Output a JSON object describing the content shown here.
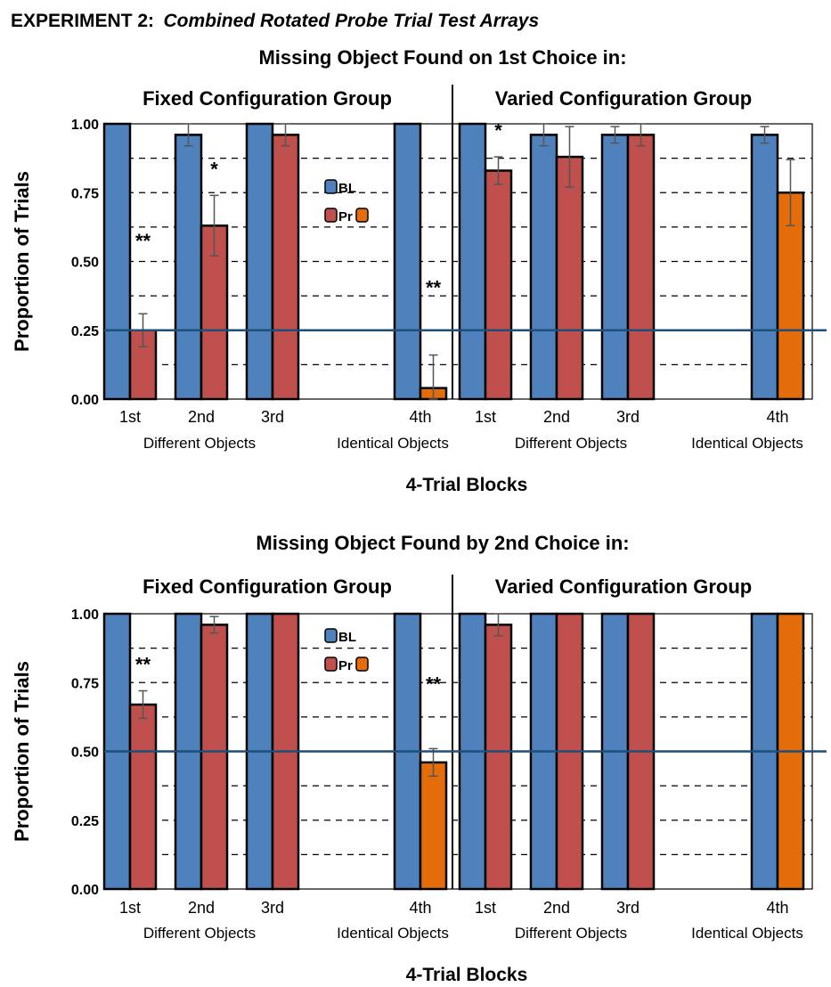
{
  "figure_title": {
    "prefix": "EXPERIMENT 2:",
    "italic": "Combined Rotated Probe Trial Test Arrays"
  },
  "colors": {
    "BL": "#4f81bd",
    "Pr": "#c0504d",
    "Pr_identical": "#e46c0a",
    "reference_line": "#1f4e79"
  },
  "chart_data": [
    {
      "type": "bar",
      "title": "Missing Object Found on 1st Choice in:",
      "ylabel": "Proportion of Trials",
      "xlabel": "4-Trial Blocks",
      "ylim": [
        0,
        1
      ],
      "yticks": [
        "0.00",
        "0.25",
        "0.50",
        "0.75",
        "1.00"
      ],
      "grid": "dashed horizontal every 0.125",
      "reference_line": 0.25,
      "legend": {
        "labels": [
          "BL",
          "Pr"
        ],
        "placement": "top-center of left panel"
      },
      "groups": [
        {
          "name": "Fixed Configuration Group",
          "categories": [
            "1st",
            "2nd",
            "3rd",
            "4th"
          ],
          "subgroup_labels": [
            "Different Objects",
            "Identical Objects"
          ],
          "series": [
            {
              "name": "BL",
              "values": [
                1.0,
                0.96,
                1.0,
                1.0
              ],
              "errors": [
                0,
                0.04,
                0,
                0
              ]
            },
            {
              "name": "Pr",
              "values": [
                0.25,
                0.63,
                0.96,
                0.04
              ],
              "errors": [
                0.06,
                0.11,
                0.04,
                0.12
              ]
            }
          ],
          "annotations": [
            {
              "category": "1st",
              "text": "**"
            },
            {
              "category": "2nd",
              "text": "*"
            },
            {
              "category": "4th",
              "text": "**"
            }
          ]
        },
        {
          "name": "Varied Configuration Group",
          "categories": [
            "1st",
            "2nd",
            "3rd",
            "4th"
          ],
          "subgroup_labels": [
            "Different Objects",
            "Identical Objects"
          ],
          "series": [
            {
              "name": "BL",
              "values": [
                1.0,
                0.96,
                0.96,
                0.96
              ],
              "errors": [
                0,
                0.04,
                0.03,
                0.03
              ]
            },
            {
              "name": "Pr",
              "values": [
                0.83,
                0.88,
                0.96,
                0.75
              ],
              "errors": [
                0.05,
                0.11,
                0.04,
                0.12
              ]
            }
          ],
          "annotations": [
            {
              "category": "1st",
              "text": "*"
            }
          ]
        }
      ]
    },
    {
      "type": "bar",
      "title": "Missing Object Found by 2nd Choice in:",
      "ylabel": "Proportion of Trials",
      "xlabel": "4-Trial Blocks",
      "ylim": [
        0,
        1
      ],
      "yticks": [
        "0.00",
        "0.25",
        "0.50",
        "0.75",
        "1.00"
      ],
      "grid": "dashed horizontal every 0.125",
      "reference_line": 0.5,
      "legend": {
        "labels": [
          "BL",
          "Pr"
        ],
        "placement": "top-center of left panel"
      },
      "groups": [
        {
          "name": "Fixed Configuration Group",
          "categories": [
            "1st",
            "2nd",
            "3rd",
            "4th"
          ],
          "subgroup_labels": [
            "Different Objects",
            "Identical Objects"
          ],
          "series": [
            {
              "name": "BL",
              "values": [
                1.0,
                1.0,
                1.0,
                1.0
              ],
              "errors": [
                0,
                0,
                0,
                0
              ]
            },
            {
              "name": "Pr",
              "values": [
                0.67,
                0.96,
                1.0,
                0.46
              ],
              "errors": [
                0.05,
                0.03,
                0,
                0.05
              ]
            }
          ],
          "annotations": [
            {
              "category": "1st",
              "text": "**"
            },
            {
              "category": "4th",
              "text": "**"
            }
          ]
        },
        {
          "name": "Varied Configuration Group",
          "categories": [
            "1st",
            "2nd",
            "3rd",
            "4th"
          ],
          "subgroup_labels": [
            "Different Objects",
            "Identical Objects"
          ],
          "series": [
            {
              "name": "BL",
              "values": [
                1.0,
                1.0,
                1.0,
                1.0
              ],
              "errors": [
                0,
                0,
                0,
                0
              ]
            },
            {
              "name": "Pr",
              "values": [
                0.96,
                1.0,
                1.0,
                1.0
              ],
              "errors": [
                0.04,
                0,
                0,
                0
              ]
            }
          ],
          "annotations": []
        }
      ]
    }
  ]
}
